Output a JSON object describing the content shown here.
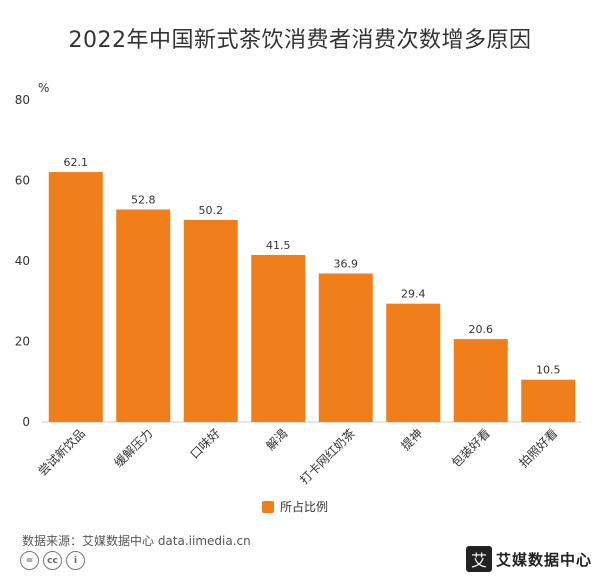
{
  "chart_title": "2022年中国新式茶饮消费者消费次数增多原因",
  "colors": {
    "bar": "#f07f1b",
    "axis_text": "#333333",
    "grid": "#cccccc"
  },
  "chart_data": {
    "type": "bar",
    "title": "2022年中国新式茶饮消费者消费次数增多原因",
    "ylabel": "%",
    "xlabel": "",
    "ylim": [
      0,
      80
    ],
    "yticks": [
      0,
      20,
      40,
      60,
      80
    ],
    "grid": false,
    "legend_position": "bottom",
    "categories": [
      "尝试新饮品",
      "缓解压力",
      "口味好",
      "解渴",
      "打卡网红奶茶",
      "提神",
      "包装好看",
      "拍照好看"
    ],
    "series": [
      {
        "name": "所占比例",
        "values": [
          62.1,
          52.8,
          50.2,
          41.5,
          36.9,
          29.4,
          20.6,
          10.5
        ]
      }
    ]
  },
  "legend": {
    "label": "所占比例"
  },
  "footer": {
    "source": "数据来源：艾媒数据中心 data.iimedia.cn",
    "cc_icons": [
      "=",
      "cc",
      "i"
    ],
    "brand_logo": "艾",
    "brand_name": "艾媒数据中心"
  }
}
